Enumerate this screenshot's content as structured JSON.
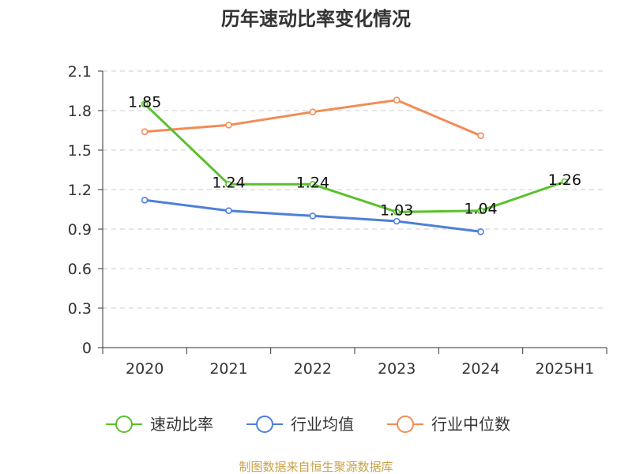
{
  "chart_data": {
    "type": "line",
    "title": "历年速动比率变化情况",
    "categories": [
      "2020",
      "2021",
      "2022",
      "2023",
      "2024",
      "2025H1"
    ],
    "ylim": [
      0,
      2.1
    ],
    "yticks": [
      "0",
      "0.3",
      "0.6",
      "0.9",
      "1.2",
      "1.5",
      "1.8",
      "2.1"
    ],
    "grid": true,
    "legend_position": "bottom",
    "series": [
      {
        "name": "速动比率",
        "color": "#5ac12e",
        "values": [
          1.85,
          1.24,
          1.24,
          1.03,
          1.04,
          1.26
        ],
        "data_labels": [
          "1.85",
          "1.24",
          "1.24",
          "1.03",
          "1.04",
          "1.26"
        ]
      },
      {
        "name": "行业均值",
        "color": "#4e7fd9",
        "values": [
          1.12,
          1.04,
          1.0,
          0.96,
          0.88,
          null
        ]
      },
      {
        "name": "行业中位数",
        "color": "#f28c55",
        "values": [
          1.64,
          1.69,
          1.79,
          1.88,
          1.61,
          null
        ]
      }
    ]
  },
  "source_text": "制图数据来自恒生聚源数据库"
}
